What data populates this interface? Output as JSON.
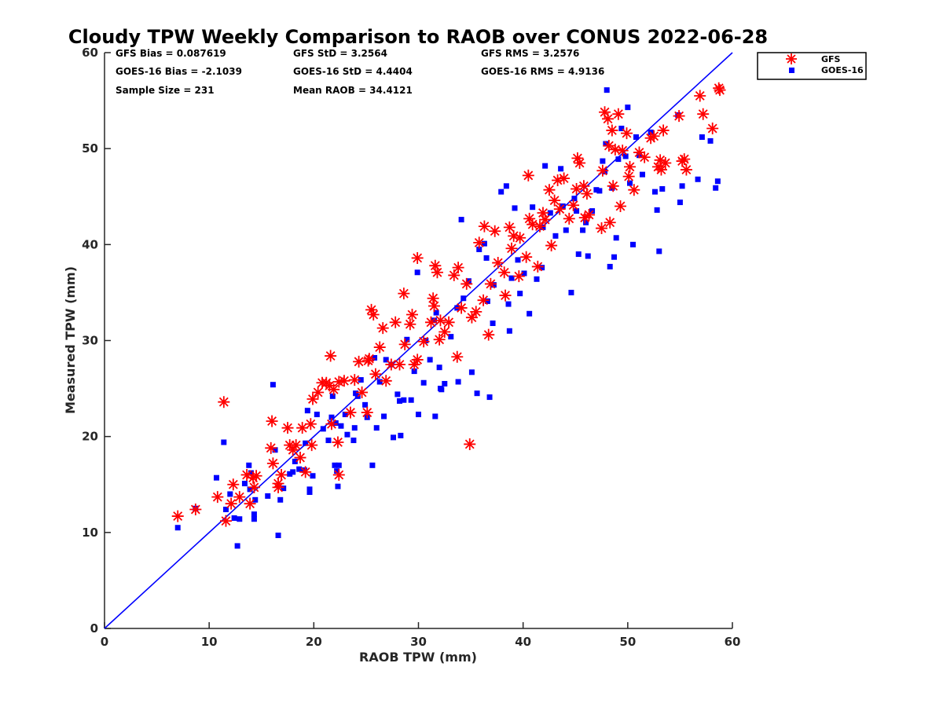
{
  "chart_data": {
    "type": "scatter",
    "title": "Cloudy TPW Weekly Comparison to RAOB over CONUS 2022-06-28",
    "xlabel": "RAOB TPW (mm)",
    "ylabel": "Measured TPW (mm)",
    "xlim": [
      0,
      60
    ],
    "ylim": [
      0,
      60
    ],
    "xticks": [
      "0",
      "10",
      "20",
      "30",
      "40",
      "50",
      "60"
    ],
    "yticks": [
      "0",
      "10",
      "20",
      "30",
      "40",
      "50",
      "60"
    ],
    "grid": false,
    "legend_position": "top-right, outside plot area",
    "reference_line": {
      "x": [
        0,
        60
      ],
      "y": [
        0,
        60
      ],
      "color": "#0000ff"
    },
    "stats": [
      {
        "text": "GFS Bias = 0.087619"
      },
      {
        "text": "GFS StD = 3.2564"
      },
      {
        "text": "GFS RMS = 3.2576"
      },
      {
        "text": "GOES-16 Bias = -2.1039"
      },
      {
        "text": "GOES-16 StD = 4.4404"
      },
      {
        "text": "GOES-16 RMS = 4.9136"
      },
      {
        "text": "Sample Size = 231"
      },
      {
        "text": "Mean RAOB = 34.4121"
      }
    ],
    "series": [
      {
        "name": "GFS",
        "marker": "asterisk",
        "color": "#ff0000",
        "points": [
          [
            7,
            11.7
          ],
          [
            8.7,
            12.4
          ],
          [
            10.8,
            13.7
          ],
          [
            11.4,
            23.6
          ],
          [
            11.6,
            11.2
          ],
          [
            12.1,
            13
          ],
          [
            12.3,
            15
          ],
          [
            12.9,
            13.7
          ],
          [
            13.6,
            16
          ],
          [
            13.9,
            13
          ],
          [
            14.2,
            15.7
          ],
          [
            14.5,
            15.9
          ],
          [
            14.3,
            14.7
          ],
          [
            15.9,
            18.8
          ],
          [
            16,
            21.6
          ],
          [
            16.1,
            17.2
          ],
          [
            16.6,
            15.1
          ],
          [
            16.9,
            16
          ],
          [
            16.6,
            14.7
          ],
          [
            17.5,
            20.9
          ],
          [
            17.7,
            19.1
          ],
          [
            18,
            18.6
          ],
          [
            18.3,
            19.1
          ],
          [
            18.7,
            17.8
          ],
          [
            19.2,
            16.3
          ],
          [
            18.9,
            20.9
          ],
          [
            19.7,
            21.3
          ],
          [
            19.8,
            19.1
          ],
          [
            19.9,
            23.9
          ],
          [
            20.4,
            24.6
          ],
          [
            20.8,
            25.6
          ],
          [
            21.2,
            25.6
          ],
          [
            21.5,
            25.3
          ],
          [
            21.6,
            28.4
          ],
          [
            21.7,
            21.3
          ],
          [
            21.9,
            24.9
          ],
          [
            22.3,
            19.4
          ],
          [
            22.4,
            16
          ],
          [
            22.4,
            25.7
          ],
          [
            22.9,
            25.8
          ],
          [
            23.5,
            22.5
          ],
          [
            23.9,
            25.9
          ],
          [
            24.3,
            27.8
          ],
          [
            24.6,
            24.6
          ],
          [
            25.1,
            22.5
          ],
          [
            25.2,
            27.9
          ],
          [
            25.3,
            28.1
          ],
          [
            25.5,
            33.2
          ],
          [
            25.7,
            32.7
          ],
          [
            25.9,
            26.5
          ],
          [
            26.3,
            29.3
          ],
          [
            26.6,
            31.3
          ],
          [
            26.9,
            25.8
          ],
          [
            27.4,
            27.5
          ],
          [
            27.8,
            31.9
          ],
          [
            28.2,
            27.5
          ],
          [
            28.6,
            34.9
          ],
          [
            28.7,
            29.6
          ],
          [
            29.2,
            31.7
          ],
          [
            29.4,
            32.7
          ],
          [
            29.6,
            27.5
          ],
          [
            29.9,
            38.6
          ],
          [
            29.9,
            28
          ],
          [
            30.5,
            29.9
          ],
          [
            31.2,
            31.9
          ],
          [
            31.4,
            34.4
          ],
          [
            31.5,
            33.6
          ],
          [
            31.6,
            37.8
          ],
          [
            31.8,
            37.1
          ],
          [
            32,
            30.1
          ],
          [
            32.1,
            32.1
          ],
          [
            32.5,
            30.9
          ],
          [
            32.9,
            31.9
          ],
          [
            33.4,
            36.8
          ],
          [
            33.8,
            37.6
          ],
          [
            33.7,
            28.3
          ],
          [
            34.1,
            33.4
          ],
          [
            34.6,
            35.9
          ],
          [
            34.9,
            19.2
          ],
          [
            35.1,
            32.4
          ],
          [
            35.5,
            33
          ],
          [
            35.8,
            40.2
          ],
          [
            36.2,
            34.2
          ],
          [
            36.3,
            41.9
          ],
          [
            36.7,
            30.6
          ],
          [
            36.9,
            35.9
          ],
          [
            37.3,
            41.4
          ],
          [
            37.6,
            38.1
          ],
          [
            38.2,
            37.1
          ],
          [
            38.3,
            34.7
          ],
          [
            38.7,
            41.8
          ],
          [
            38.9,
            39.6
          ],
          [
            39.1,
            40.9
          ],
          [
            39.6,
            36.7
          ],
          [
            39.7,
            40.7
          ],
          [
            40.3,
            38.7
          ],
          [
            40.5,
            47.2
          ],
          [
            40.6,
            42.7
          ],
          [
            40.9,
            42.1
          ],
          [
            41.4,
            37.7
          ],
          [
            41.6,
            41.9
          ],
          [
            41.9,
            43.3
          ],
          [
            42.1,
            42.6
          ],
          [
            42.5,
            45.7
          ],
          [
            42.7,
            39.9
          ],
          [
            43,
            44.6
          ],
          [
            43.3,
            46.7
          ],
          [
            43.5,
            43.7
          ],
          [
            43.9,
            46.9
          ],
          [
            44.4,
            42.7
          ],
          [
            44.8,
            44.1
          ],
          [
            45.1,
            45.8
          ],
          [
            45.2,
            49
          ],
          [
            45.4,
            48.5
          ],
          [
            45.8,
            46.1
          ],
          [
            45.9,
            42.8
          ],
          [
            46.1,
            45.3
          ],
          [
            46.3,
            43.1
          ],
          [
            47.5,
            41.7
          ],
          [
            47.6,
            47.7
          ],
          [
            47.8,
            53.8
          ],
          [
            48.1,
            53.1
          ],
          [
            48.2,
            50.3
          ],
          [
            48.3,
            42.3
          ],
          [
            48.5,
            51.9
          ],
          [
            48.6,
            46.1
          ],
          [
            48.8,
            49.9
          ],
          [
            49.1,
            53.6
          ],
          [
            49.3,
            44
          ],
          [
            49.5,
            49.8
          ],
          [
            49.9,
            51.6
          ],
          [
            50.1,
            47.1
          ],
          [
            50.2,
            48.1
          ],
          [
            50.6,
            45.7
          ],
          [
            51.1,
            49.6
          ],
          [
            51.6,
            49.1
          ],
          [
            52.2,
            51.1
          ],
          [
            52.5,
            51.3
          ],
          [
            52.9,
            48.1
          ],
          [
            53.1,
            48.8
          ],
          [
            53.2,
            47.8
          ],
          [
            53.4,
            51.9
          ],
          [
            53.6,
            48.5
          ],
          [
            54.9,
            53.4
          ],
          [
            55.2,
            48.7
          ],
          [
            55.4,
            48.9
          ],
          [
            55.6,
            47.8
          ],
          [
            56.9,
            55.5
          ],
          [
            57.2,
            53.6
          ],
          [
            58.1,
            52.1
          ],
          [
            58.7,
            56.3
          ],
          [
            58.8,
            56.1
          ]
        ]
      },
      {
        "name": "GOES-16",
        "marker": "square",
        "color": "#0000ff",
        "points": [
          [
            7,
            10.5
          ],
          [
            8.7,
            12.5
          ],
          [
            10.7,
            15.7
          ],
          [
            11.4,
            19.4
          ],
          [
            11.6,
            12.4
          ],
          [
            12,
            14
          ],
          [
            12.4,
            11.5
          ],
          [
            12.7,
            8.6
          ],
          [
            12.9,
            11.4
          ],
          [
            13.4,
            15.1
          ],
          [
            13.8,
            17
          ],
          [
            13.9,
            14.5
          ],
          [
            14,
            16.2
          ],
          [
            14.3,
            11.4
          ],
          [
            14.3,
            11.9
          ],
          [
            14.4,
            13.4
          ],
          [
            15.6,
            13.8
          ],
          [
            16.1,
            25.4
          ],
          [
            16.3,
            18.6
          ],
          [
            16.6,
            9.7
          ],
          [
            16.8,
            13.4
          ],
          [
            17.1,
            14.6
          ],
          [
            17.7,
            16.1
          ],
          [
            18,
            16.3
          ],
          [
            18.2,
            17.4
          ],
          [
            18.6,
            16.6
          ],
          [
            19.1,
            16.5
          ],
          [
            19.2,
            19.3
          ],
          [
            19.4,
            22.7
          ],
          [
            19.6,
            14.5
          ],
          [
            19.6,
            14.2
          ],
          [
            19.9,
            15.9
          ],
          [
            20.3,
            22.3
          ],
          [
            20.9,
            20.8
          ],
          [
            21.4,
            19.6
          ],
          [
            21.7,
            22
          ],
          [
            21.8,
            24.2
          ],
          [
            22,
            17
          ],
          [
            22.1,
            21.4
          ],
          [
            22.2,
            16.4
          ],
          [
            22.3,
            14.8
          ],
          [
            22.4,
            17
          ],
          [
            22.6,
            21.1
          ],
          [
            23,
            22.3
          ],
          [
            23.2,
            20.2
          ],
          [
            23.8,
            19.6
          ],
          [
            23.9,
            20.9
          ],
          [
            24,
            24.5
          ],
          [
            24.2,
            24.2
          ],
          [
            24.5,
            25.9
          ],
          [
            24.9,
            23.3
          ],
          [
            25.1,
            22
          ],
          [
            25.6,
            17
          ],
          [
            25.8,
            28.2
          ],
          [
            26,
            20.9
          ],
          [
            26.3,
            25.7
          ],
          [
            26.7,
            22.1
          ],
          [
            26.9,
            28
          ],
          [
            27.4,
            27.5
          ],
          [
            27.6,
            19.9
          ],
          [
            28,
            24.4
          ],
          [
            28.2,
            23.7
          ],
          [
            28.3,
            20.1
          ],
          [
            28.6,
            23.8
          ],
          [
            28.9,
            30.1
          ],
          [
            29.3,
            23.8
          ],
          [
            29.6,
            26.8
          ],
          [
            29.9,
            37.1
          ],
          [
            30,
            22.3
          ],
          [
            30.5,
            25.6
          ],
          [
            30.7,
            30
          ],
          [
            31.1,
            28
          ],
          [
            31.5,
            32.1
          ],
          [
            31.6,
            22.1
          ],
          [
            31.7,
            32.9
          ],
          [
            32,
            27.2
          ],
          [
            32.1,
            25
          ],
          [
            32.2,
            24.9
          ],
          [
            32.5,
            25.5
          ],
          [
            33.1,
            30.4
          ],
          [
            33.7,
            33.4
          ],
          [
            33.8,
            25.7
          ],
          [
            34.1,
            42.6
          ],
          [
            34.3,
            34.4
          ],
          [
            34.8,
            36.2
          ],
          [
            35.1,
            26.7
          ],
          [
            35.6,
            24.5
          ],
          [
            35.8,
            39.5
          ],
          [
            36.3,
            40.1
          ],
          [
            36.5,
            38.6
          ],
          [
            36.6,
            34.1
          ],
          [
            36.8,
            24.1
          ],
          [
            37.1,
            31.8
          ],
          [
            37.2,
            35.8
          ],
          [
            37.9,
            45.5
          ],
          [
            38.4,
            46.1
          ],
          [
            38.6,
            33.8
          ],
          [
            38.7,
            31
          ],
          [
            38.9,
            36.5
          ],
          [
            39.2,
            43.8
          ],
          [
            39.5,
            38.4
          ],
          [
            39.7,
            34.9
          ],
          [
            40.1,
            37
          ],
          [
            40.6,
            32.8
          ],
          [
            40.9,
            43.9
          ],
          [
            41.3,
            36.4
          ],
          [
            41.8,
            37.6
          ],
          [
            41.9,
            41.8
          ],
          [
            42.1,
            48.2
          ],
          [
            42.6,
            43.3
          ],
          [
            43.1,
            40.9
          ],
          [
            43.6,
            47.9
          ],
          [
            43.8,
            44
          ],
          [
            44.1,
            41.5
          ],
          [
            44.6,
            35
          ],
          [
            44.9,
            44.8
          ],
          [
            45.1,
            43.5
          ],
          [
            45.3,
            39
          ],
          [
            45.7,
            41.5
          ],
          [
            46,
            42.3
          ],
          [
            46.2,
            38.8
          ],
          [
            46.6,
            43.5
          ],
          [
            47,
            45.7
          ],
          [
            47.3,
            45.6
          ],
          [
            47.6,
            48.7
          ],
          [
            47.8,
            47.6
          ],
          [
            47.9,
            50.5
          ],
          [
            48,
            56.1
          ],
          [
            48.3,
            37.7
          ],
          [
            48.5,
            45.9
          ],
          [
            48.7,
            38.7
          ],
          [
            48.9,
            40.7
          ],
          [
            49.1,
            48.9
          ],
          [
            49.4,
            52.1
          ],
          [
            49.8,
            49.2
          ],
          [
            50,
            54.3
          ],
          [
            50.2,
            46.4
          ],
          [
            50.5,
            40
          ],
          [
            50.8,
            51.2
          ],
          [
            51.1,
            49.3
          ],
          [
            51.4,
            47.3
          ],
          [
            52.2,
            51.7
          ],
          [
            52.6,
            45.5
          ],
          [
            52.8,
            43.6
          ],
          [
            53,
            39.3
          ],
          [
            53.3,
            45.8
          ],
          [
            54.8,
            53.5
          ],
          [
            55,
            44.4
          ],
          [
            55.2,
            46.1
          ],
          [
            56.7,
            46.8
          ],
          [
            57.1,
            51.2
          ],
          [
            57.9,
            50.8
          ],
          [
            58.4,
            45.9
          ],
          [
            58.6,
            46.6
          ]
        ]
      }
    ]
  }
}
